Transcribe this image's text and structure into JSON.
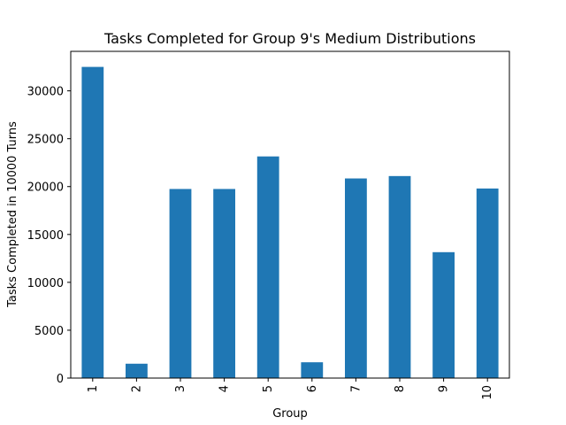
{
  "chart_data": {
    "type": "bar",
    "title": "Tasks Completed for Group 9's Medium Distributions",
    "xlabel": "Group",
    "ylabel": "Tasks Completed in 10000 Turns",
    "categories": [
      "1",
      "2",
      "3",
      "4",
      "5",
      "6",
      "7",
      "8",
      "9",
      "10"
    ],
    "values": [
      32500,
      1500,
      19750,
      19750,
      23150,
      1650,
      20850,
      21100,
      13150,
      19800
    ],
    "ylim": [
      0,
      34125
    ],
    "yticks": [
      0,
      5000,
      10000,
      15000,
      20000,
      25000,
      30000
    ],
    "grid": false,
    "legend": "none",
    "bar_color": "#1f77b4"
  }
}
